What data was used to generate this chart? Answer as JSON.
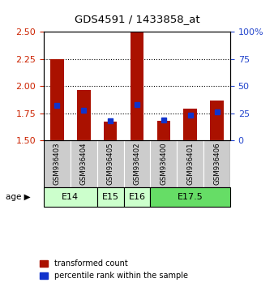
{
  "title": "GDS4591 / 1433858_at",
  "samples": [
    "GSM936403",
    "GSM936404",
    "GSM936405",
    "GSM936402",
    "GSM936400",
    "GSM936401",
    "GSM936406"
  ],
  "red_values": [
    2.25,
    1.96,
    1.67,
    2.49,
    1.68,
    1.79,
    1.87
  ],
  "blue_values": [
    32,
    28,
    18,
    33,
    19,
    23,
    26
  ],
  "ylim_left": [
    1.5,
    2.5
  ],
  "ylim_right": [
    0,
    100
  ],
  "yticks_left": [
    1.5,
    1.75,
    2.0,
    2.25,
    2.5
  ],
  "yticks_right": [
    0,
    25,
    50,
    75,
    100
  ],
  "age_groups": [
    {
      "label": "E14",
      "samples": [
        "GSM936403",
        "GSM936404"
      ],
      "color": "#ccffcc"
    },
    {
      "label": "E15",
      "samples": [
        "GSM936405"
      ],
      "color": "#ccffcc"
    },
    {
      "label": "E16",
      "samples": [
        "GSM936402"
      ],
      "color": "#ccffcc"
    },
    {
      "label": "E17.5",
      "samples": [
        "GSM936400",
        "GSM936401",
        "GSM936406"
      ],
      "color": "#66dd66"
    }
  ],
  "bar_color": "#aa1100",
  "blue_color": "#1133cc",
  "bar_width": 0.5,
  "legend_labels": [
    "transformed count",
    "percentile rank within the sample"
  ],
  "age_label": "age",
  "tick_color_left": "#cc2200",
  "tick_color_right": "#2244cc",
  "gridline_color": "#000000",
  "bar_bottom": 1.5,
  "blue_marker_size": 5,
  "gray_color": "#cccccc",
  "e14_e15_e16_color": "#ccffcc",
  "e17_color": "#66dd66"
}
